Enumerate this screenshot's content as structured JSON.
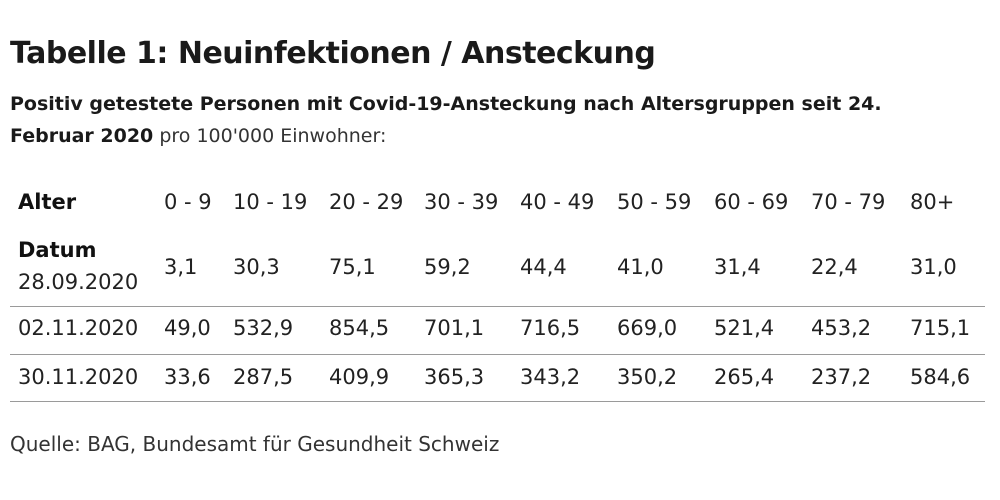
{
  "title": "Tabelle 1: Neuinfektionen / Ansteckung",
  "subtitle": {
    "bold": "Positiv getestete Personen mit Covid-19-Ansteckung nach Altersgruppen seit 24. Februar 2020",
    "light": " pro 100'000 Einwohner:"
  },
  "table": {
    "header_label": "Alter",
    "date_label": "Datum",
    "age_groups": [
      "0 - 9",
      "10 - 19",
      "20 - 29",
      "30 - 39",
      "40 - 49",
      "50 - 59",
      "60 - 69",
      "70 - 79",
      "80+"
    ],
    "rows": [
      {
        "date": "28.09.2020",
        "values": [
          "3,1",
          "30,3",
          "75,1",
          "59,2",
          "44,4",
          "41,0",
          "31,4",
          "22,4",
          "31,0"
        ]
      },
      {
        "date": "02.11.2020",
        "values": [
          "49,0",
          "532,9",
          "854,5",
          "701,1",
          "716,5",
          "669,0",
          "521,4",
          "453,2",
          "715,1"
        ]
      },
      {
        "date": "30.11.2020",
        "values": [
          "33,6",
          "287,5",
          "409,9",
          "365,3",
          "343,2",
          "350,2",
          "265,4",
          "237,2",
          "584,6"
        ]
      }
    ]
  },
  "source": "Quelle: BAG, Bundesamt für Gesundheit Schweiz"
}
